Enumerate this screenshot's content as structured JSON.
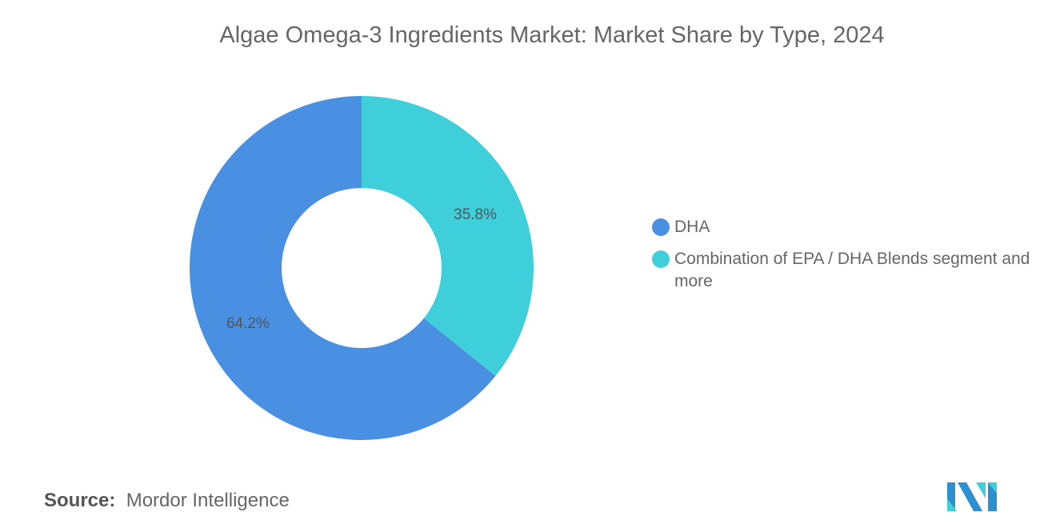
{
  "chart_data": {
    "type": "pie",
    "variant": "donut",
    "title": "Algae Omega-3 Ingredients Market: Market Share by Type, 2024",
    "categories": [
      "DHA",
      "Combination of EPA / DHA Blends segment and more"
    ],
    "values": [
      64.2,
      35.8
    ],
    "data_labels": [
      "64.2%",
      "35.8%"
    ],
    "colors": [
      "#4a90e2",
      "#3ecfda"
    ],
    "legend_position": "right"
  },
  "source": {
    "label": "Source:",
    "value": "Mordor Intelligence"
  }
}
